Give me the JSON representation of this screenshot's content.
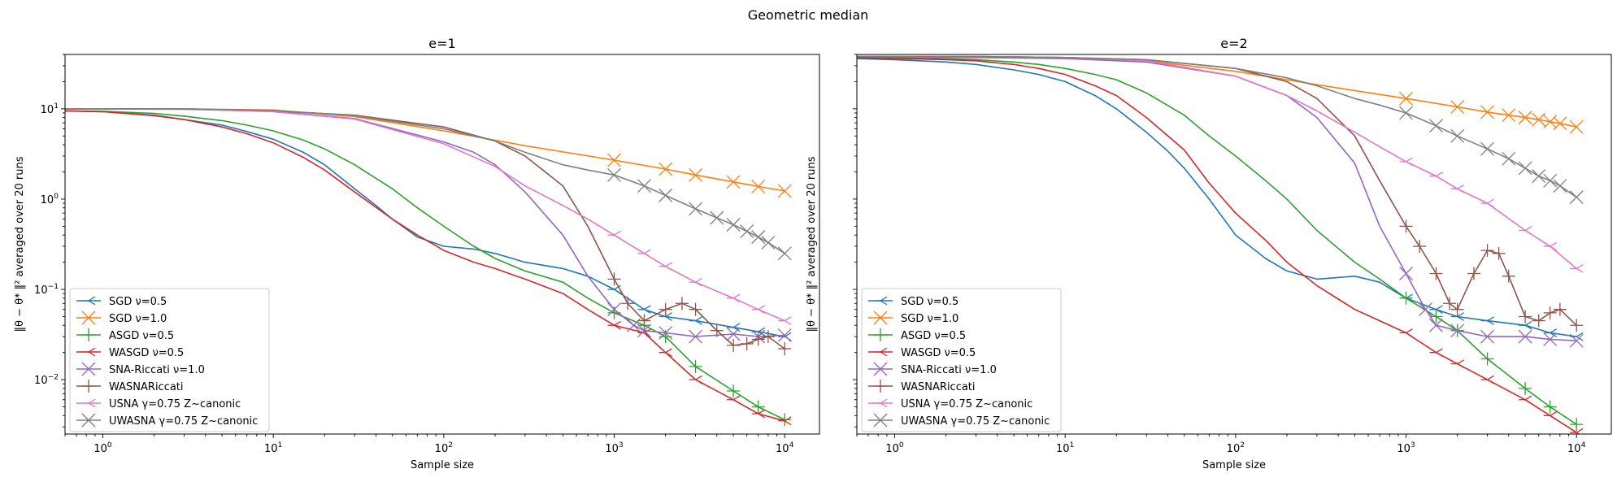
{
  "figure": {
    "suptitle": "Geometric median"
  },
  "chart_data": [
    {
      "type": "line",
      "title": "e=1",
      "xlabel": "Sample size",
      "ylabel": "‖θ − θ* ‖² averaged over 20 runs",
      "xscale": "log",
      "yscale": "log",
      "xlim": [
        0.6,
        16000
      ],
      "ylim": [
        0.0025,
        40
      ],
      "grid": false,
      "legend": "lower-left",
      "x_ticks": [
        {
          "base": "10",
          "exp": "0",
          "value": 1
        },
        {
          "base": "10",
          "exp": "1",
          "value": 10
        },
        {
          "base": "10",
          "exp": "2",
          "value": 100
        },
        {
          "base": "10",
          "exp": "3",
          "value": 1000
        },
        {
          "base": "10",
          "exp": "4",
          "value": 10000
        }
      ],
      "y_ticks": [
        {
          "base": "10",
          "exp": "−2",
          "value": 0.01
        },
        {
          "base": "10",
          "exp": "−1",
          "value": 0.1
        },
        {
          "base": "10",
          "exp": "0",
          "value": 1
        },
        {
          "base": "10",
          "exp": "1",
          "value": 10
        }
      ],
      "series": [
        {
          "name": "SGD ν=0.5",
          "color": "#1f77b4",
          "marker": "tri_left",
          "x": [
            0.6,
            1,
            2,
            3,
            5,
            7,
            10,
            15,
            20,
            30,
            40,
            50,
            70,
            100,
            150,
            200,
            300,
            500,
            700,
            1000,
            1500,
            2000,
            3000,
            5000,
            7000,
            10000
          ],
          "y": [
            9.5,
            9.3,
            8.5,
            7.6,
            6.6,
            5.6,
            4.6,
            3.3,
            2.4,
            1.3,
            0.85,
            0.6,
            0.38,
            0.3,
            0.28,
            0.25,
            0.2,
            0.17,
            0.14,
            0.1,
            0.06,
            0.05,
            0.045,
            0.038,
            0.034,
            0.03
          ]
        },
        {
          "name": "SGD ν=1.0",
          "color": "#ff7f0e",
          "marker": "x",
          "x": [
            0.6,
            1,
            3,
            10,
            30,
            100,
            300,
            1000,
            2000,
            3000,
            5000,
            7000,
            10000
          ],
          "y": [
            10,
            10,
            10,
            9.7,
            8.2,
            5.7,
            3.9,
            2.7,
            2.15,
            1.85,
            1.55,
            1.38,
            1.23
          ]
        },
        {
          "name": "ASGD ν=0.5",
          "color": "#2ca02c",
          "marker": "plus",
          "x": [
            0.6,
            1,
            2,
            3,
            5,
            7,
            10,
            15,
            20,
            30,
            50,
            70,
            100,
            150,
            200,
            300,
            500,
            700,
            1000,
            1500,
            2000,
            3000,
            5000,
            7000,
            10000
          ],
          "y": [
            9.5,
            9.4,
            8.9,
            8.3,
            7.4,
            6.6,
            5.7,
            4.5,
            3.6,
            2.4,
            1.3,
            0.8,
            0.5,
            0.3,
            0.22,
            0.16,
            0.12,
            0.08,
            0.055,
            0.04,
            0.03,
            0.014,
            0.0075,
            0.005,
            0.0036
          ]
        },
        {
          "name": "WASGD ν=0.5",
          "color": "#d62728",
          "marker": "tri_left",
          "x": [
            0.6,
            1,
            2,
            3,
            5,
            7,
            10,
            15,
            20,
            30,
            50,
            70,
            100,
            150,
            200,
            300,
            500,
            700,
            1000,
            1500,
            2000,
            3000,
            5000,
            7000,
            10000
          ],
          "y": [
            9.5,
            9.3,
            8.4,
            7.6,
            6.3,
            5.3,
            4.2,
            2.9,
            2.1,
            1.2,
            0.6,
            0.4,
            0.27,
            0.2,
            0.17,
            0.13,
            0.09,
            0.06,
            0.04,
            0.033,
            0.02,
            0.01,
            0.006,
            0.0042,
            0.0035
          ]
        },
        {
          "name": "SNA-Riccati ν=1.0",
          "color": "#9467bd",
          "marker": "x",
          "x": [
            0.6,
            1,
            3,
            10,
            30,
            100,
            150,
            200,
            300,
            500,
            700,
            1000,
            1300,
            1500,
            2000,
            3000,
            5000,
            7000,
            10000
          ],
          "y": [
            10,
            10,
            9.9,
            9.4,
            7.8,
            4.3,
            3.3,
            2.4,
            1.2,
            0.4,
            0.14,
            0.06,
            0.04,
            0.035,
            0.033,
            0.03,
            0.032,
            0.03,
            0.031
          ]
        },
        {
          "name": "WASNARiccati",
          "color": "#8c564b",
          "marker": "plus",
          "x": [
            0.6,
            1,
            3,
            10,
            30,
            100,
            200,
            300,
            500,
            700,
            1000,
            1200,
            1500,
            2000,
            2500,
            3000,
            4000,
            5000,
            6000,
            7000,
            8000,
            10000
          ],
          "y": [
            10,
            10,
            10,
            9.5,
            8.5,
            6.3,
            4.4,
            3,
            1.4,
            0.5,
            0.13,
            0.07,
            0.045,
            0.06,
            0.07,
            0.06,
            0.035,
            0.024,
            0.025,
            0.028,
            0.03,
            0.022
          ]
        },
        {
          "name": "USNA γ=0.75 Z~canonic",
          "color": "#e377c2",
          "marker": "tri_left",
          "x": [
            0.6,
            1,
            3,
            10,
            30,
            100,
            200,
            300,
            500,
            700,
            1000,
            1500,
            2000,
            3000,
            5000,
            7000,
            10000
          ],
          "y": [
            10,
            10,
            10,
            9.3,
            7.7,
            4.1,
            2.3,
            1.4,
            0.85,
            0.6,
            0.4,
            0.25,
            0.18,
            0.12,
            0.08,
            0.06,
            0.045
          ]
        },
        {
          "name": "UWASNA γ=0.75 Z~canonic",
          "color": "#7f7f7f",
          "marker": "x",
          "x": [
            0.6,
            1,
            3,
            10,
            30,
            100,
            200,
            300,
            500,
            700,
            1000,
            1500,
            2000,
            3000,
            4000,
            5000,
            6000,
            7000,
            8000,
            10000
          ],
          "y": [
            10,
            10,
            10,
            9.6,
            8.4,
            6,
            4.4,
            3.3,
            2.4,
            2.1,
            1.85,
            1.4,
            1.1,
            0.78,
            0.62,
            0.52,
            0.44,
            0.38,
            0.33,
            0.25
          ]
        }
      ]
    },
    {
      "type": "line",
      "title": "e=2",
      "xlabel": "Sample size",
      "ylabel": "‖θ − θ* ‖² averaged over 20 runs",
      "xscale": "log",
      "yscale": "log",
      "xlim": [
        0.6,
        16000
      ],
      "ylim": [
        0.0025,
        40
      ],
      "grid": false,
      "legend": "lower-left",
      "x_ticks": [
        {
          "base": "10",
          "exp": "0",
          "value": 1
        },
        {
          "base": "10",
          "exp": "1",
          "value": 10
        },
        {
          "base": "10",
          "exp": "2",
          "value": 100
        },
        {
          "base": "10",
          "exp": "3",
          "value": 1000
        },
        {
          "base": "10",
          "exp": "4",
          "value": 10000
        }
      ],
      "y_ticks": [],
      "series": [
        {
          "name": "SGD ν=0.5",
          "color": "#1f77b4",
          "marker": "tri_left",
          "x": [
            0.6,
            1,
            2,
            3,
            5,
            7,
            10,
            15,
            20,
            30,
            40,
            50,
            70,
            100,
            150,
            200,
            300,
            500,
            700,
            1000,
            1500,
            2000,
            3000,
            5000,
            7000,
            10000
          ],
          "y": [
            36,
            35,
            33,
            31,
            27,
            24,
            20,
            14,
            10,
            5.5,
            3.4,
            2.2,
            1,
            0.4,
            0.22,
            0.16,
            0.13,
            0.14,
            0.12,
            0.08,
            0.06,
            0.05,
            0.045,
            0.04,
            0.033,
            0.03
          ]
        },
        {
          "name": "SGD ν=1.0",
          "color": "#ff7f0e",
          "marker": "x",
          "x": [
            0.6,
            1,
            3,
            10,
            30,
            100,
            300,
            1000,
            2000,
            3000,
            4000,
            5000,
            6000,
            7000,
            8000,
            10000
          ],
          "y": [
            38,
            38,
            38,
            37,
            34,
            26,
            18.5,
            13,
            10.5,
            9.2,
            8.5,
            8,
            7.6,
            7.2,
            6.9,
            6.3
          ]
        },
        {
          "name": "ASGD ν=0.5",
          "color": "#2ca02c",
          "marker": "plus",
          "x": [
            0.6,
            1,
            2,
            3,
            5,
            7,
            10,
            15,
            20,
            30,
            50,
            70,
            100,
            150,
            200,
            300,
            500,
            700,
            1000,
            1500,
            2000,
            3000,
            5000,
            7000,
            10000
          ],
          "y": [
            37,
            37,
            36,
            35,
            33,
            31,
            28,
            24,
            21,
            15,
            8.5,
            5,
            3,
            1.6,
            1,
            0.45,
            0.2,
            0.13,
            0.08,
            0.05,
            0.035,
            0.017,
            0.008,
            0.005,
            0.0032
          ]
        },
        {
          "name": "WASGD ν=0.5",
          "color": "#d62728",
          "marker": "tri_left",
          "x": [
            0.6,
            1,
            2,
            3,
            5,
            7,
            10,
            15,
            20,
            30,
            50,
            70,
            100,
            150,
            200,
            300,
            500,
            700,
            1000,
            1500,
            2000,
            3000,
            5000,
            7000,
            10000
          ],
          "y": [
            37,
            36,
            35,
            34,
            31,
            28,
            24,
            18,
            14,
            8,
            3.5,
            1.5,
            0.7,
            0.35,
            0.2,
            0.11,
            0.06,
            0.045,
            0.033,
            0.02,
            0.015,
            0.01,
            0.006,
            0.004,
            0.0026
          ]
        },
        {
          "name": "SNA-Riccati ν=1.0",
          "color": "#9467bd",
          "marker": "x",
          "x": [
            0.6,
            1,
            3,
            10,
            30,
            100,
            200,
            300,
            500,
            700,
            1000,
            1300,
            1500,
            2000,
            3000,
            5000,
            7000,
            10000
          ],
          "y": [
            38,
            38,
            37,
            36,
            33,
            23,
            14,
            8,
            2.5,
            0.5,
            0.15,
            0.06,
            0.04,
            0.035,
            0.03,
            0.03,
            0.028,
            0.027
          ]
        },
        {
          "name": "WASNARiccati",
          "color": "#8c564b",
          "marker": "plus",
          "x": [
            0.6,
            1,
            3,
            10,
            30,
            100,
            200,
            300,
            500,
            700,
            1000,
            1200,
            1500,
            1800,
            2000,
            2500,
            3000,
            3500,
            4000,
            5000,
            6000,
            7000,
            8000,
            10000
          ],
          "y": [
            38,
            38,
            38,
            37,
            35,
            28,
            20,
            13,
            5,
            1.6,
            0.5,
            0.3,
            0.15,
            0.07,
            0.06,
            0.15,
            0.27,
            0.25,
            0.14,
            0.05,
            0.045,
            0.055,
            0.06,
            0.04
          ]
        },
        {
          "name": "USNA γ=0.75 Z~canonic",
          "color": "#e377c2",
          "marker": "tri_left",
          "x": [
            0.6,
            1,
            3,
            10,
            30,
            100,
            200,
            300,
            500,
            700,
            1000,
            1500,
            2000,
            3000,
            5000,
            7000,
            10000
          ],
          "y": [
            38,
            38,
            38,
            37,
            34,
            23,
            14,
            9.5,
            5.5,
            3.8,
            2.6,
            1.8,
            1.3,
            0.9,
            0.45,
            0.3,
            0.17
          ]
        },
        {
          "name": "UWASNA γ=0.75 Z~canonic",
          "color": "#7f7f7f",
          "marker": "x",
          "x": [
            0.6,
            1,
            3,
            10,
            30,
            100,
            200,
            300,
            500,
            700,
            1000,
            1500,
            2000,
            3000,
            4000,
            5000,
            6000,
            7000,
            8000,
            10000
          ],
          "y": [
            38,
            38,
            38,
            37,
            35,
            28,
            22,
            18,
            13,
            11,
            9,
            6.5,
            5,
            3.6,
            2.8,
            2.2,
            1.8,
            1.6,
            1.4,
            1.05
          ]
        }
      ]
    }
  ]
}
